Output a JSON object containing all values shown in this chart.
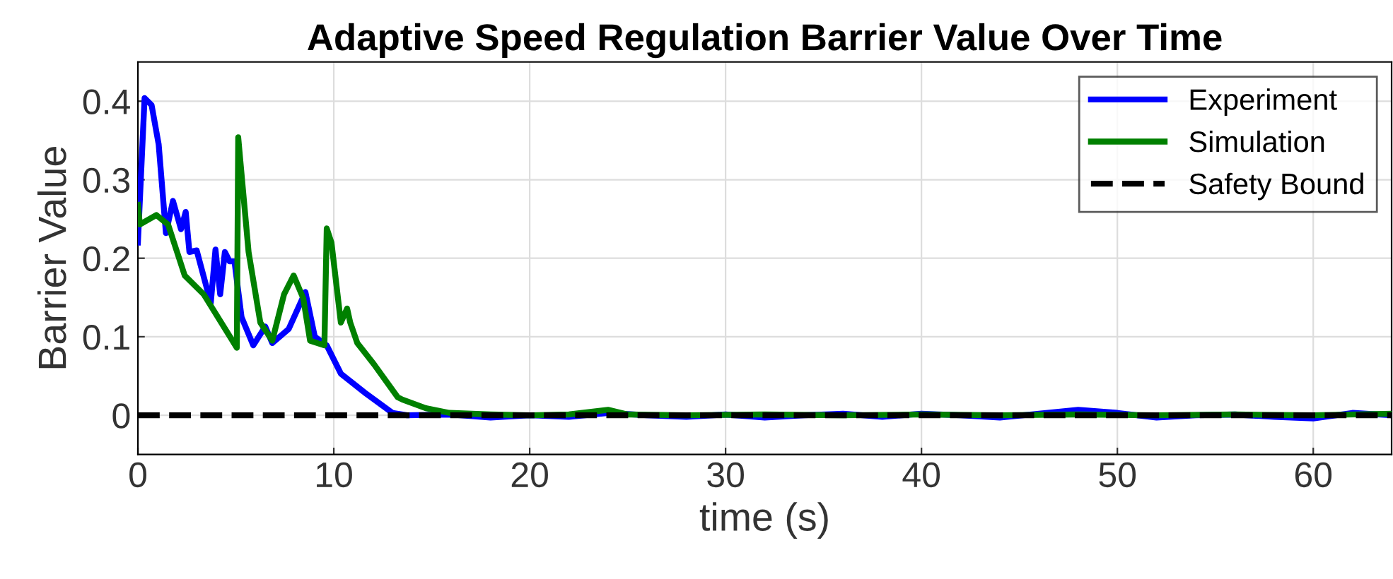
{
  "chart_data": {
    "type": "line",
    "title": "Adaptive Speed Regulation Barrier Value Over Time",
    "xlabel": "time (s)",
    "ylabel": "Barrier Value",
    "xlim": [
      0,
      64
    ],
    "ylim": [
      -0.05,
      0.45
    ],
    "xticks": [
      0,
      10,
      20,
      30,
      40,
      50,
      60
    ],
    "yticks": [
      0,
      0.1,
      0.2,
      0.3,
      0.4
    ],
    "grid": true,
    "legend": "top right",
    "line_style": "solid",
    "marker": "none",
    "series": [
      {
        "name": "Experiment",
        "color": "#0000ff",
        "x": [
          0,
          0.34,
          0.7,
          1.06,
          1.43,
          1.79,
          2.2,
          2.44,
          2.63,
          3.0,
          3.72,
          3.96,
          4.2,
          4.44,
          4.68,
          4.93,
          5.29,
          5.89,
          6.5,
          6.86,
          7.7,
          8.55,
          9.03,
          9.64,
          10.36,
          11.57,
          13.0,
          13.75,
          16,
          18,
          20,
          22,
          24,
          26,
          28,
          30,
          32,
          34,
          36,
          38,
          40,
          42,
          44,
          46,
          48,
          50,
          52,
          54,
          56,
          58,
          60,
          62,
          64
        ],
        "values": [
          0.22,
          0.404,
          0.395,
          0.345,
          0.232,
          0.273,
          0.237,
          0.259,
          0.208,
          0.21,
          0.143,
          0.211,
          0.154,
          0.208,
          0.196,
          0.196,
          0.125,
          0.089,
          0.113,
          0.092,
          0.11,
          0.157,
          0.1,
          0.089,
          0.053,
          0.029,
          0.003,
          0.0,
          0.001,
          -0.003,
          0.0,
          -0.002,
          0.003,
          0.0,
          -0.002,
          0.001,
          -0.003,
          0.0,
          0.002,
          -0.002,
          0.002,
          0.0,
          -0.003,
          0.002,
          0.007,
          0.003,
          -0.003,
          0.0,
          0.001,
          -0.002,
          -0.004,
          0.003,
          0.0
        ]
      },
      {
        "name": "Simulation",
        "color": "#008000",
        "x": [
          0,
          0.1,
          0.94,
          1.54,
          2.39,
          3.36,
          5.05,
          5.12,
          5.65,
          6.25,
          6.86,
          7.46,
          7.95,
          8.44,
          8.79,
          9.52,
          9.64,
          9.88,
          10.36,
          10.68,
          10.84,
          11.2,
          12.05,
          13.26,
          13.5,
          14.7,
          15.9,
          18,
          20,
          22,
          24,
          25,
          28,
          32,
          36,
          40,
          44,
          48,
          52,
          56,
          60,
          64
        ],
        "values": [
          0.268,
          0.243,
          0.255,
          0.243,
          0.178,
          0.154,
          0.086,
          0.354,
          0.208,
          0.118,
          0.095,
          0.154,
          0.178,
          0.149,
          0.095,
          0.089,
          0.238,
          0.22,
          0.118,
          0.136,
          0.118,
          0.092,
          0.065,
          0.023,
          0.02,
          0.009,
          0.003,
          0.001,
          0.0,
          0.001,
          0.007,
          0.001,
          0.0,
          0.001,
          0.0,
          0.001,
          0.0,
          0.001,
          0.0,
          0.001,
          0.0,
          0.002
        ]
      }
    ],
    "ref_lines": [
      {
        "axis": "y",
        "value": 0,
        "label": "Safety Bound",
        "color": "#000000",
        "line_style": "dashed"
      }
    ]
  }
}
